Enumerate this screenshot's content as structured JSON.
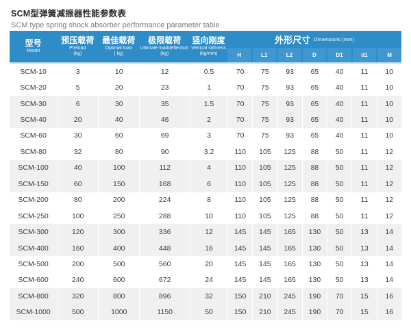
{
  "header": {
    "title_zh": "SCM型弹簧减振器性能参数表",
    "title_en": "SCM type spring shock absorber performance parameter table"
  },
  "colors": {
    "header_blue": "#2e8cc7",
    "subheader_blue": "#3f97d2",
    "header_divider_blue": "#bcdcf0",
    "row_alt_gray": "#f0f0f0",
    "text_dark": "#3a3a3a",
    "text_gray": "#7a7a7a"
  },
  "table": {
    "columns": [
      {
        "zh": "型号",
        "en": "Model",
        "unit": ""
      },
      {
        "zh": "预压载荷",
        "en": "Preload",
        "unit": "(kg)"
      },
      {
        "zh": "最佳载荷",
        "en": "Optimal load",
        "unit": "( kg)"
      },
      {
        "zh": "极限载荷",
        "en": "Ultimate loaddeflection",
        "unit": "(kg)"
      },
      {
        "zh": "竖向刚度",
        "en": "Vertical stiffness",
        "unit": "(kg/mm)"
      }
    ],
    "dims_group": {
      "zh": "外形尺寸",
      "en": "Dimensions (mm)",
      "cols": [
        "H",
        "L1",
        "L2",
        "D",
        "D1",
        "d1",
        "M"
      ]
    },
    "col_keys": [
      "model",
      "preload",
      "optimal-load",
      "ultimate-load",
      "vertical-stiffness",
      "h",
      "l1",
      "l2",
      "d",
      "d1",
      "m1",
      "m"
    ],
    "rows": [
      [
        "SCM-10",
        "3",
        "10",
        "12",
        "0.5",
        "70",
        "75",
        "93",
        "65",
        "40",
        "11",
        "10"
      ],
      [
        "SCM-20",
        "5",
        "20",
        "23",
        "1",
        "70",
        "75",
        "93",
        "65",
        "40",
        "11",
        "10"
      ],
      [
        "SCM-30",
        "6",
        "30",
        "35",
        "1.5",
        "70",
        "75",
        "93",
        "65",
        "40",
        "11",
        "10"
      ],
      [
        "SCM-40",
        "20",
        "40",
        "46",
        "2",
        "70",
        "75",
        "93",
        "65",
        "40",
        "11",
        "10"
      ],
      [
        "SCM-60",
        "30",
        "60",
        "69",
        "3",
        "70",
        "75",
        "93",
        "65",
        "40",
        "11",
        "10"
      ],
      [
        "SCM-80",
        "32",
        "80",
        "90",
        "3.2",
        "110",
        "105",
        "125",
        "88",
        "50",
        "11",
        "12"
      ],
      [
        "SCM-100",
        "40",
        "100",
        "112",
        "4",
        "110",
        "105",
        "125",
        "88",
        "50",
        "11",
        "12"
      ],
      [
        "SCM-150",
        "60",
        "150",
        "168",
        "6",
        "110",
        "105",
        "125",
        "88",
        "50",
        "11",
        "12"
      ],
      [
        "SCM-200",
        "80",
        "200",
        "224",
        "8",
        "110",
        "105",
        "125",
        "88",
        "50",
        "11",
        "12"
      ],
      [
        "SCM-250",
        "100",
        "250",
        "288",
        "10",
        "110",
        "105",
        "125",
        "88",
        "50",
        "11",
        "12"
      ],
      [
        "SCM-300",
        "120",
        "300",
        "336",
        "12",
        "145",
        "145",
        "165",
        "130",
        "50",
        "13",
        "14"
      ],
      [
        "SCM-400",
        "160",
        "400",
        "448",
        "16",
        "145",
        "145",
        "165",
        "130",
        "50",
        "13",
        "14"
      ],
      [
        "SCM-500",
        "200",
        "500",
        "560",
        "20",
        "145",
        "145",
        "165",
        "130",
        "50",
        "13",
        "14"
      ],
      [
        "SCM-600",
        "240",
        "600",
        "672",
        "24",
        "145",
        "145",
        "165",
        "130",
        "50",
        "13",
        "14"
      ],
      [
        "SCM-800",
        "320",
        "800",
        "896",
        "32",
        "150",
        "210",
        "245",
        "190",
        "70",
        "15",
        "16"
      ],
      [
        "SCM-1000",
        "500",
        "1000",
        "1150",
        "50",
        "150",
        "210",
        "245",
        "190",
        "70",
        "15",
        "16"
      ]
    ]
  }
}
